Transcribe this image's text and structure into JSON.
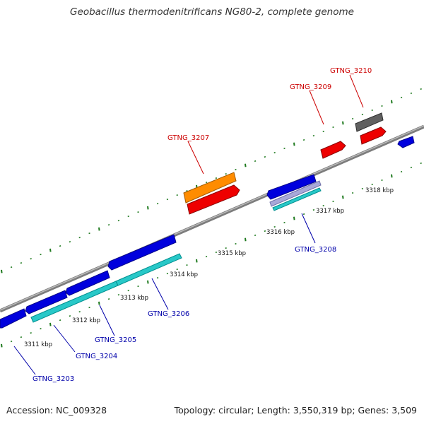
{
  "title": "Geobacillus thermodenitrificans NG80-2, complete genome",
  "footer": {
    "accession": "Accession: NC_009328",
    "summary": "Topology: circular; Length: 3,550,319 bp; Genes: 3,509"
  },
  "colors": {
    "backbone": "#8a8a8a",
    "tick": "#1f7a1f",
    "forward_label": "#cc0000",
    "reverse_label": "#0000aa"
  },
  "scale_labels": [
    "3311 kbp",
    "3312 kbp",
    "3313 kbp",
    "3314 kbp",
    "3315 kbp",
    "3316 kbp",
    "3317 kbp",
    "3318 kbp"
  ],
  "genes": [
    {
      "id": "GTNG_3203",
      "strand": "reverse",
      "color": "#0000dd"
    },
    {
      "id": "GTNG_3204",
      "strand": "reverse",
      "color": "#0000dd"
    },
    {
      "id": "GTNG_3205",
      "strand": "reverse",
      "color": "#0000dd"
    },
    {
      "id": "GTNG_3206",
      "strand": "reverse",
      "color": "#0000dd"
    },
    {
      "id": "GTNG_3207",
      "strand": "forward",
      "color": "#ff8c00"
    },
    {
      "id": "GTNG_3208",
      "strand": "reverse",
      "color": "#0000dd"
    },
    {
      "id": "GTNG_3209",
      "strand": "forward",
      "color": "#ee0000"
    },
    {
      "id": "GTNG_3210",
      "strand": "forward",
      "color": "#606060"
    }
  ]
}
